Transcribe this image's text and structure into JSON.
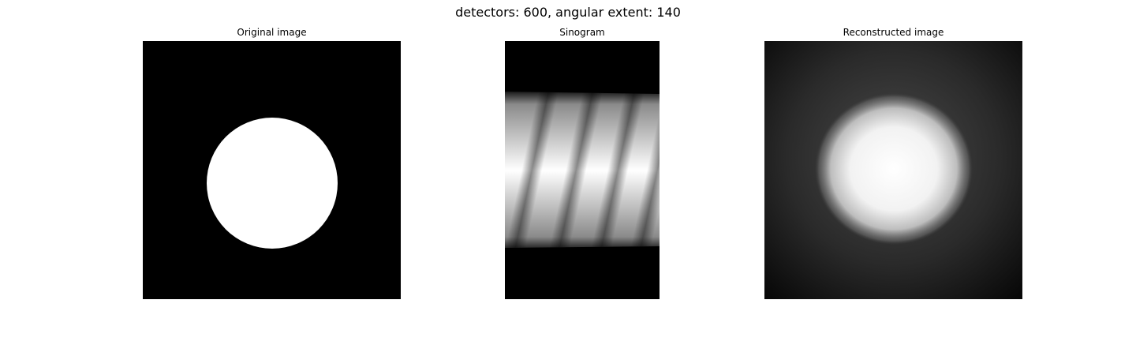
{
  "figure": {
    "suptitle": "detectors: 600, angular extent: 140"
  },
  "panels": {
    "original": {
      "title": "Original image"
    },
    "sinogram": {
      "title": "Sinogram"
    },
    "reconstructed": {
      "title": "Reconstructed image"
    }
  },
  "colors": {
    "background": "#000000",
    "foreground": "#ffffff",
    "colormap": "gray"
  }
}
